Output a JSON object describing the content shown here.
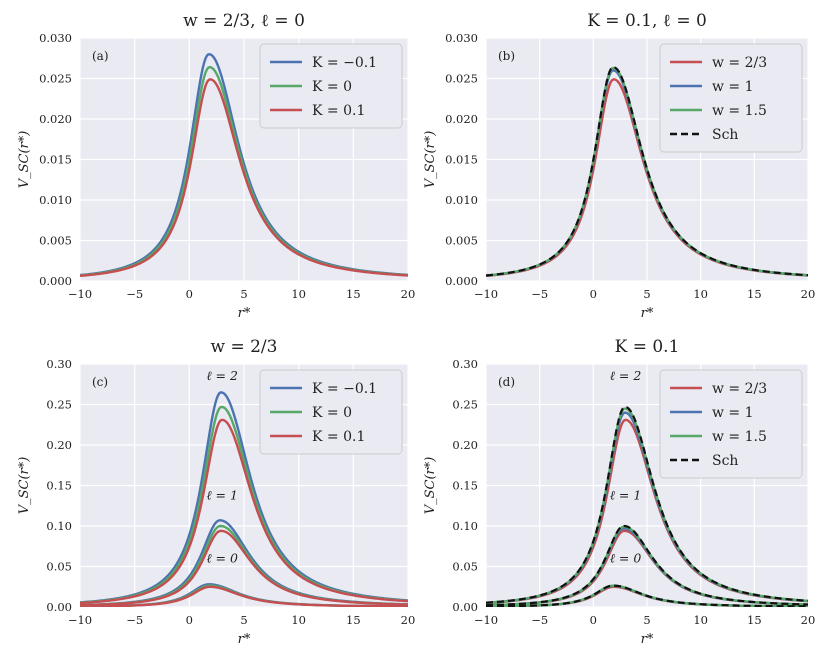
{
  "chart_data": [
    {
      "type": "line",
      "panel": "(a)",
      "title": "w = 2/3, ℓ = 0",
      "xlabel": "r*",
      "ylabel": "V_SC(r*)",
      "xlim": [
        -10,
        20
      ],
      "ylim": [
        0,
        0.03
      ],
      "xticks": [
        -10,
        -5,
        0,
        5,
        10,
        15,
        20
      ],
      "yticks": [
        "0.000",
        "0.005",
        "0.010",
        "0.015",
        "0.020",
        "0.025",
        "0.030"
      ],
      "grid": true,
      "legend_position": "top-right",
      "series": [
        {
          "name": "K = −0.1",
          "color": "#4c72b0",
          "dash": "solid",
          "peaks": [
            {
              "peak": 0.028,
              "center": 1.8,
              "label": ""
            }
          ]
        },
        {
          "name": "K = 0",
          "color": "#55a868",
          "dash": "solid",
          "peaks": [
            {
              "peak": 0.0264,
              "center": 1.85,
              "label": ""
            }
          ]
        },
        {
          "name": "K = 0.1",
          "color": "#c44e52",
          "dash": "solid",
          "peaks": [
            {
              "peak": 0.0249,
              "center": 1.9,
              "label": ""
            }
          ]
        }
      ],
      "annotations": []
    },
    {
      "type": "line",
      "panel": "(b)",
      "title": "K = 0.1, ℓ = 0",
      "xlabel": "r*",
      "ylabel": "V_SC(r*)",
      "xlim": [
        -10,
        20
      ],
      "ylim": [
        0,
        0.03
      ],
      "xticks": [
        -10,
        -5,
        0,
        5,
        10,
        15,
        20
      ],
      "yticks": [
        "0.000",
        "0.005",
        "0.010",
        "0.015",
        "0.020",
        "0.025",
        "0.030"
      ],
      "grid": true,
      "legend_position": "top-right",
      "series": [
        {
          "name": "w = 2/3",
          "color": "#c44e52",
          "dash": "solid",
          "peaks": [
            {
              "peak": 0.0249,
              "center": 1.9,
              "label": ""
            }
          ]
        },
        {
          "name": "w = 1",
          "color": "#4c72b0",
          "dash": "solid",
          "peaks": [
            {
              "peak": 0.026,
              "center": 1.85,
              "label": ""
            }
          ]
        },
        {
          "name": "w = 1.5",
          "color": "#55a868",
          "dash": "solid",
          "peaks": [
            {
              "peak": 0.0263,
              "center": 1.85,
              "label": ""
            }
          ]
        },
        {
          "name": "Sch",
          "color": "#111111",
          "dash": "dashed",
          "peaks": [
            {
              "peak": 0.0264,
              "center": 1.85,
              "label": ""
            }
          ]
        }
      ],
      "annotations": []
    },
    {
      "type": "line",
      "panel": "(c)",
      "title": "w = 2/3",
      "xlabel": "r*",
      "ylabel": "V_SC(r*)",
      "xlim": [
        -10,
        20
      ],
      "ylim": [
        0,
        0.3
      ],
      "xticks": [
        -10,
        -5,
        0,
        5,
        10,
        15,
        20
      ],
      "yticks": [
        "0.00",
        "0.05",
        "0.10",
        "0.15",
        "0.20",
        "0.25",
        "0.30"
      ],
      "grid": true,
      "legend_position": "top-right",
      "series": [
        {
          "name": "K = −0.1",
          "color": "#4c72b0",
          "dash": "solid",
          "peaks": [
            {
              "peak": 0.265,
              "center": 2.9,
              "label": "ℓ=2"
            },
            {
              "peak": 0.107,
              "center": 2.8,
              "label": "ℓ=1"
            },
            {
              "peak": 0.028,
              "center": 1.8,
              "label": "ℓ=0"
            }
          ]
        },
        {
          "name": "K = 0",
          "color": "#55a868",
          "dash": "solid",
          "peaks": [
            {
              "peak": 0.247,
              "center": 2.95,
              "label": "ℓ=2"
            },
            {
              "peak": 0.1,
              "center": 2.85,
              "label": "ℓ=1"
            },
            {
              "peak": 0.0264,
              "center": 1.85,
              "label": "ℓ=0"
            }
          ]
        },
        {
          "name": "K = 0.1",
          "color": "#c44e52",
          "dash": "solid",
          "peaks": [
            {
              "peak": 0.231,
              "center": 3.0,
              "label": "ℓ=2"
            },
            {
              "peak": 0.094,
              "center": 2.9,
              "label": "ℓ=1"
            },
            {
              "peak": 0.0249,
              "center": 1.9,
              "label": "ℓ=0"
            }
          ]
        }
      ],
      "annotations": [
        {
          "text": "ℓ = 2",
          "x": 3,
          "y": 0.28
        },
        {
          "text": "ℓ = 1",
          "x": 3,
          "y": 0.133
        },
        {
          "text": "ℓ = 0",
          "x": 3,
          "y": 0.055
        }
      ]
    },
    {
      "type": "line",
      "panel": "(d)",
      "title": "K = 0.1",
      "xlabel": "r*",
      "ylabel": "V_SC(r*)",
      "xlim": [
        -10,
        20
      ],
      "ylim": [
        0,
        0.3
      ],
      "xticks": [
        -10,
        -5,
        0,
        5,
        10,
        15,
        20
      ],
      "yticks": [
        "0.00",
        "0.05",
        "0.10",
        "0.15",
        "0.20",
        "0.25",
        "0.30"
      ],
      "grid": true,
      "legend_position": "top-right",
      "series": [
        {
          "name": "w = 2/3",
          "color": "#c44e52",
          "dash": "solid",
          "peaks": [
            {
              "peak": 0.231,
              "center": 3.0,
              "label": "ℓ=2"
            },
            {
              "peak": 0.094,
              "center": 2.9,
              "label": "ℓ=1"
            },
            {
              "peak": 0.0249,
              "center": 1.9,
              "label": "ℓ=0"
            }
          ]
        },
        {
          "name": "w = 1",
          "color": "#4c72b0",
          "dash": "solid",
          "peaks": [
            {
              "peak": 0.24,
              "center": 2.95,
              "label": "ℓ=2"
            },
            {
              "peak": 0.097,
              "center": 2.85,
              "label": "ℓ=1"
            },
            {
              "peak": 0.026,
              "center": 1.85,
              "label": "ℓ=0"
            }
          ]
        },
        {
          "name": "w = 1.5",
          "color": "#55a868",
          "dash": "solid",
          "peaks": [
            {
              "peak": 0.245,
              "center": 2.95,
              "label": "ℓ=2"
            },
            {
              "peak": 0.099,
              "center": 2.85,
              "label": "ℓ=1"
            },
            {
              "peak": 0.0263,
              "center": 1.85,
              "label": "ℓ=0"
            }
          ]
        },
        {
          "name": "Sch",
          "color": "#111111",
          "dash": "dashed",
          "peaks": [
            {
              "peak": 0.247,
              "center": 2.95,
              "label": "ℓ=2"
            },
            {
              "peak": 0.1,
              "center": 2.85,
              "label": "ℓ=1"
            },
            {
              "peak": 0.0264,
              "center": 1.85,
              "label": "ℓ=0"
            }
          ]
        }
      ],
      "annotations": [
        {
          "text": "ℓ = 2",
          "x": 3,
          "y": 0.28
        },
        {
          "text": "ℓ = 1",
          "x": 3,
          "y": 0.133
        },
        {
          "text": "ℓ = 0",
          "x": 3,
          "y": 0.055
        }
      ]
    }
  ]
}
